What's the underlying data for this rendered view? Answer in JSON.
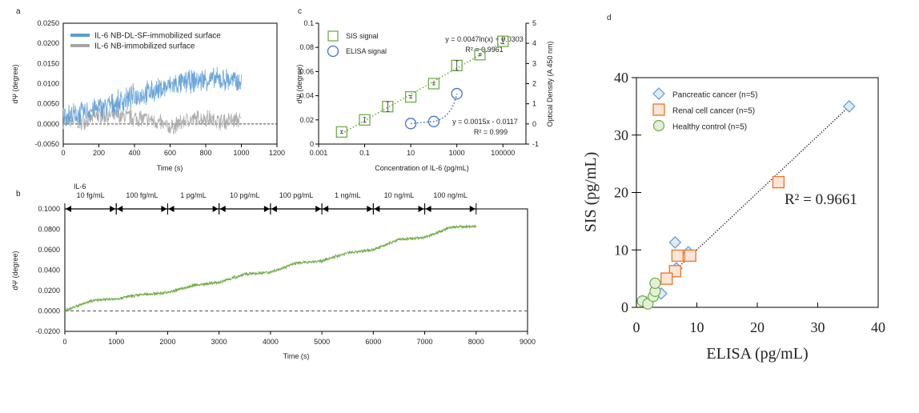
{
  "chart_data": [
    {
      "panel": "a",
      "type": "line",
      "xlabel": "Time (s)",
      "ylabel": "dΨ (degree)",
      "xlim": [
        0,
        1200
      ],
      "ylim": [
        -0.005,
        0.025
      ],
      "xticks": [
        0,
        200,
        400,
        600,
        800,
        1000,
        1200
      ],
      "yticks": [
        "-0.0050",
        "0.0000",
        "0.0050",
        "0.0100",
        "0.0150",
        "0.0200",
        "0.0250"
      ],
      "baseline": 0,
      "legend": "top-left",
      "series": [
        {
          "name": "IL-6 NB-DL-SF-immobilized surface",
          "color": "#5b9bd5",
          "noise_amplitude": 0.0035,
          "x": [
            0,
            100,
            200,
            300,
            400,
            500,
            600,
            700,
            800,
            900,
            1000
          ],
          "y": [
            0.002,
            0.0025,
            0.004,
            0.005,
            0.007,
            0.008,
            0.0095,
            0.0105,
            0.011,
            0.011,
            0.0105
          ]
        },
        {
          "name": "IL-6 NB-immobilized surface",
          "color": "#a5a5a5",
          "noise_amplitude": 0.0025,
          "x": [
            0,
            100,
            200,
            300,
            400,
            500,
            600,
            700,
            800,
            900,
            1000
          ],
          "y": [
            0.001,
            0.0005,
            0.002,
            0.002,
            0.0015,
            0.001,
            -0.001,
            0.001,
            0.0015,
            0.0005,
            0.001
          ]
        }
      ]
    },
    {
      "panel": "b",
      "type": "line",
      "xlabel": "Time (s)",
      "ylabel": "dΨ (degree)",
      "xlim": [
        0,
        9000
      ],
      "ylim": [
        -0.02,
        0.1
      ],
      "xticks": [
        0,
        1000,
        2000,
        3000,
        4000,
        5000,
        6000,
        7000,
        8000,
        9000
      ],
      "yticks": [
        "-0.0200",
        "0.0000",
        "0.0200",
        "0.0400",
        "0.0600",
        "0.0800",
        "0.1000"
      ],
      "baseline": 0,
      "injection_label": "IL-6",
      "intervals": [
        {
          "start": 0,
          "end": 1000,
          "label": "10 fg/mL"
        },
        {
          "start": 1000,
          "end": 2000,
          "label": "100 fg/mL"
        },
        {
          "start": 2000,
          "end": 3000,
          "label": "1 pg/mL"
        },
        {
          "start": 3000,
          "end": 4000,
          "label": "10 pg/mL"
        },
        {
          "start": 4000,
          "end": 5000,
          "label": "100 pg/mL"
        },
        {
          "start": 5000,
          "end": 6000,
          "label": "1 ng/mL"
        },
        {
          "start": 6000,
          "end": 7000,
          "label": "10 ng/mL"
        },
        {
          "start": 7000,
          "end": 8000,
          "label": "100 ng/mL"
        }
      ],
      "series": [
        {
          "name": "SIS signal",
          "color": "#70ad47",
          "noise_amplitude": 0.004,
          "x": [
            0,
            500,
            1000,
            1500,
            2000,
            2500,
            3000,
            3500,
            4000,
            4500,
            5000,
            5500,
            6000,
            6500,
            7000,
            7500,
            8000
          ],
          "y": [
            0.0,
            0.01,
            0.012,
            0.016,
            0.018,
            0.025,
            0.028,
            0.036,
            0.038,
            0.047,
            0.049,
            0.057,
            0.06,
            0.07,
            0.072,
            0.082,
            0.083
          ]
        }
      ]
    },
    {
      "panel": "c",
      "type": "scatter",
      "xlabel": "Concentration of IL-6 (pg/mL)",
      "ylabel": "dΨ (degree)",
      "y2label": "Optical Density (A 450 nm)",
      "xscale": "log",
      "xlim": [
        0.001,
        1000000
      ],
      "ylim": [
        0,
        0.1
      ],
      "y2lim": [
        -1,
        5
      ],
      "xticks": [
        "0.001",
        "0.1",
        "10",
        "1000",
        "100000"
      ],
      "yticks": [
        "0",
        "0.02",
        "0.04",
        "0.06",
        "0.08",
        "0.1"
      ],
      "y2ticks": [
        "-1",
        "0",
        "1",
        "2",
        "3",
        "4",
        "5"
      ],
      "legend": "top-left",
      "series": [
        {
          "name": "SIS signal",
          "color": "#70ad47",
          "marker": "square",
          "axis": "left",
          "x": [
            0.01,
            0.1,
            1,
            10,
            100,
            1000,
            10000,
            100000
          ],
          "y": [
            0.01,
            0.02,
            0.031,
            0.039,
            0.05,
            0.065,
            0.074,
            0.085
          ],
          "err": [
            0.001,
            0.002,
            0.004,
            0.001,
            0.001,
            0.004,
            0.001,
            0.002
          ],
          "fit": "y = 0.0047ln(x) + 0.0303",
          "r2": "R² = 0.9961"
        },
        {
          "name": "ELISA signal",
          "color": "#4472c4",
          "marker": "circle",
          "axis": "right",
          "x": [
            10,
            100,
            1000
          ],
          "y": [
            0.02,
            0.12,
            1.5
          ],
          "fit": "y = 0.0015x - 0.0117",
          "r2": "R² = 0.999"
        }
      ]
    },
    {
      "panel": "d",
      "type": "scatter",
      "xlabel": "ELISA (pg/mL)",
      "ylabel": "SIS (pg/mL)",
      "xlim": [
        0,
        40
      ],
      "ylim": [
        0,
        40
      ],
      "xticks": [
        "0",
        "10",
        "20",
        "30",
        "40"
      ],
      "yticks": [
        "0",
        "10",
        "20",
        "30",
        "40"
      ],
      "legend": "top-left",
      "trendline": {
        "x": [
          1,
          35.2
        ],
        "y": [
          1.1,
          35
        ],
        "r2": "R² = 0.9661"
      },
      "series": [
        {
          "name": "Pancreatic cancer (n=5)",
          "marker": "diamond",
          "color": "#5b9bd5",
          "fill": "#deebf7",
          "x": [
            35.2,
            6.4,
            8.6,
            6.6,
            4.1
          ],
          "y": [
            35,
            11.3,
            9.6,
            6.8,
            2.4
          ]
        },
        {
          "name": "Renal cell cancer (n=5)",
          "marker": "square",
          "color": "#ed7d31",
          "fill": "#fbe5d6",
          "x": [
            23.5,
            6.8,
            8.9,
            6.4,
            5.0
          ],
          "y": [
            21.8,
            9.0,
            9.0,
            6.3,
            5.0
          ]
        },
        {
          "name": "Healthy control (n=5)",
          "marker": "circle",
          "color": "#70ad47",
          "fill": "#e2f0d9",
          "x": [
            1.0,
            1.9,
            2.8,
            3.1,
            3.1
          ],
          "y": [
            1.1,
            0.6,
            1.9,
            2.8,
            4.2
          ]
        }
      ]
    }
  ],
  "panel_labels": [
    "a",
    "b",
    "c",
    "d"
  ]
}
